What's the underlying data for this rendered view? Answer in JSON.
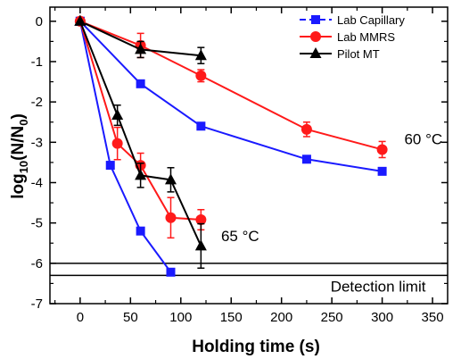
{
  "chart_data": {
    "type": "line",
    "xlabel": "Holding time (s)",
    "ylabel": "log10(N/N0)",
    "xlim": [
      -30,
      365
    ],
    "ylim": [
      -7,
      0.35
    ],
    "xticks": [
      0,
      50,
      100,
      150,
      200,
      250,
      300,
      350
    ],
    "yticks": [
      0,
      -1,
      -2,
      -3,
      -4,
      -5,
      -6,
      -7
    ],
    "grid": false,
    "legend": "top-right",
    "series": [
      {
        "name": "Lab Capillary",
        "color": "#1a1aff",
        "marker": "square",
        "group": "60 °C",
        "points": [
          {
            "x": 0,
            "y": 0
          },
          {
            "x": 60,
            "y": -1.55
          },
          {
            "x": 120,
            "y": -2.6
          },
          {
            "x": 225,
            "y": -3.42
          },
          {
            "x": 300,
            "y": -3.72
          }
        ]
      },
      {
        "name": "Lab MMRS",
        "color": "#ff1a1a",
        "marker": "circle",
        "group": "60 °C",
        "points": [
          {
            "x": 0,
            "y": 0
          },
          {
            "x": 60,
            "y": -0.6,
            "err": 0.3
          },
          {
            "x": 120,
            "y": -1.35,
            "err": 0.15
          },
          {
            "x": 225,
            "y": -2.68,
            "err": 0.18
          },
          {
            "x": 300,
            "y": -3.18,
            "err": 0.2
          }
        ]
      },
      {
        "name": "Pilot MT",
        "color": "#000000",
        "marker": "triangle",
        "group": "60 °C",
        "points": [
          {
            "x": 0,
            "y": 0
          },
          {
            "x": 60,
            "y": -0.7,
            "err": 0.2
          },
          {
            "x": 120,
            "y": -0.85,
            "err": 0.2
          }
        ]
      },
      {
        "name": "Lab Capillary",
        "color": "#1a1aff",
        "marker": "square",
        "group": "65 °C",
        "points": [
          {
            "x": 0,
            "y": 0
          },
          {
            "x": 30,
            "y": -3.57
          },
          {
            "x": 60,
            "y": -5.2
          },
          {
            "x": 90,
            "y": -6.22
          }
        ]
      },
      {
        "name": "Lab MMRS",
        "color": "#ff1a1a",
        "marker": "circle",
        "group": "65 °C",
        "points": [
          {
            "x": 0,
            "y": 0
          },
          {
            "x": 37,
            "y": -3.03,
            "err": 0.4
          },
          {
            "x": 60,
            "y": -3.57,
            "err": 0.3
          },
          {
            "x": 90,
            "y": -4.87,
            "err": 0.5
          },
          {
            "x": 120,
            "y": -4.92,
            "err": 0.25
          }
        ]
      },
      {
        "name": "Pilot MT",
        "color": "#000000",
        "marker": "triangle",
        "group": "65 °C",
        "points": [
          {
            "x": 0,
            "y": 0
          },
          {
            "x": 37,
            "y": -2.33,
            "err": 0.25
          },
          {
            "x": 60,
            "y": -3.82,
            "err": 0.3
          },
          {
            "x": 90,
            "y": -3.93,
            "err": 0.3
          },
          {
            "x": 120,
            "y": -5.57,
            "err": 0.55
          }
        ]
      }
    ],
    "reference_lines": [
      {
        "y": -6.0
      },
      {
        "y": -6.3
      }
    ],
    "annotations": [
      {
        "text": "60 °C",
        "x": 322,
        "y": -3.05
      },
      {
        "text": "65 °C",
        "x": 140,
        "y": -5.45
      },
      {
        "text": "Detection limit",
        "x": 296,
        "y": -6.7
      }
    ]
  }
}
